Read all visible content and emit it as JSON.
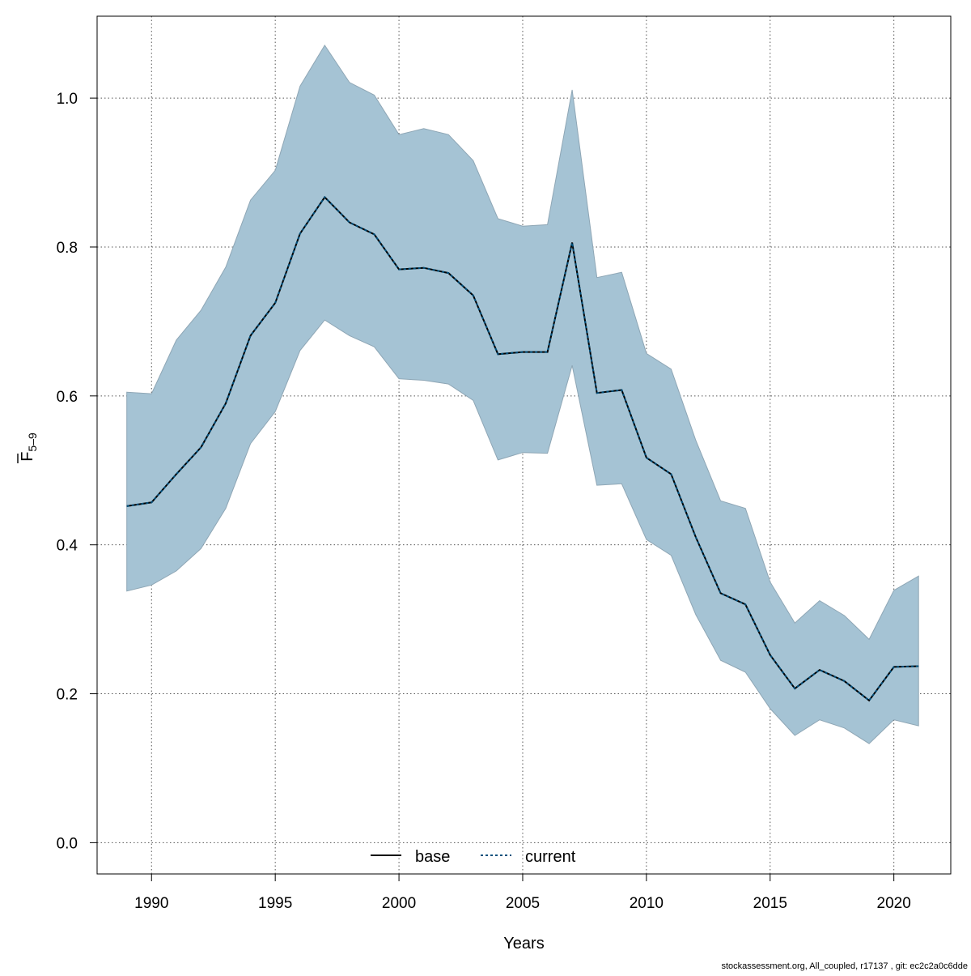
{
  "chart_data": {
    "type": "area",
    "xlabel": "Years",
    "ylabel": {
      "main": "F",
      "subscript": "5–9",
      "overbar": true
    },
    "xlim": [
      1987.8,
      2022.3
    ],
    "ylim": [
      -0.042,
      1.11
    ],
    "xticks": [
      1990,
      1995,
      2000,
      2005,
      2010,
      2015,
      2020
    ],
    "yticks": [
      0.0,
      0.2,
      0.4,
      0.6,
      0.8,
      1.0
    ],
    "ytick_labels": [
      "0.0",
      "0.2",
      "0.4",
      "0.6",
      "0.8",
      "1.0"
    ],
    "grid": true,
    "years": [
      1989,
      1990,
      1991,
      1992,
      1993,
      1994,
      1995,
      1996,
      1997,
      1998,
      1999,
      2000,
      2001,
      2002,
      2003,
      2004,
      2005,
      2006,
      2007,
      2008,
      2009,
      2010,
      2011,
      2012,
      2013,
      2014,
      2015,
      2016,
      2017,
      2018,
      2019,
      2020,
      2021
    ],
    "band": {
      "color": "#a5c3d4",
      "stroke": "#8ea6b5",
      "upper": [
        0.605,
        0.603,
        0.675,
        0.715,
        0.773,
        0.863,
        0.903,
        1.016,
        1.071,
        1.021,
        1.004,
        0.951,
        0.959,
        0.951,
        0.916,
        0.838,
        0.828,
        0.83,
        1.011,
        0.759,
        0.766,
        0.657,
        0.636,
        0.54,
        0.459,
        0.449,
        0.35,
        0.295,
        0.325,
        0.305,
        0.273,
        0.339,
        0.358
      ],
      "lower": [
        0.338,
        0.346,
        0.365,
        0.395,
        0.449,
        0.536,
        0.579,
        0.661,
        0.702,
        0.681,
        0.666,
        0.623,
        0.621,
        0.616,
        0.594,
        0.514,
        0.524,
        0.523,
        0.641,
        0.48,
        0.482,
        0.407,
        0.386,
        0.306,
        0.245,
        0.229,
        0.18,
        0.144,
        0.165,
        0.154,
        0.133,
        0.165,
        0.157
      ]
    },
    "series": [
      {
        "name": "base",
        "color": "#000000",
        "dash": "solid",
        "values": [
          0.452,
          0.457,
          0.495,
          0.531,
          0.59,
          0.681,
          0.725,
          0.818,
          0.867,
          0.833,
          0.817,
          0.77,
          0.772,
          0.765,
          0.735,
          0.656,
          0.659,
          0.659,
          0.806,
          0.604,
          0.608,
          0.517,
          0.495,
          0.41,
          0.335,
          0.32,
          0.252,
          0.207,
          0.232,
          0.217,
          0.191,
          0.236,
          0.237
        ]
      },
      {
        "name": "current",
        "color": "#00507c",
        "dash": "dotted",
        "values": [
          0.452,
          0.457,
          0.495,
          0.531,
          0.59,
          0.681,
          0.725,
          0.818,
          0.867,
          0.833,
          0.817,
          0.77,
          0.772,
          0.765,
          0.735,
          0.656,
          0.659,
          0.659,
          0.806,
          0.604,
          0.608,
          0.517,
          0.495,
          0.41,
          0.335,
          0.32,
          0.252,
          0.207,
          0.232,
          0.217,
          0.191,
          0.236,
          0.237
        ]
      }
    ],
    "legend": {
      "position": "bottom-center",
      "entries": [
        "base",
        "current"
      ]
    }
  },
  "footer_text": "stockassessment.org, All_coupled, r17137 , git: ec2c2a0c6dde"
}
